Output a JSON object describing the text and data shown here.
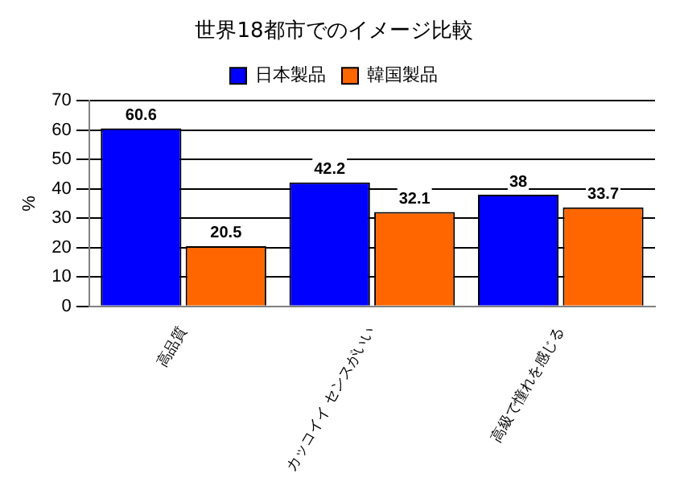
{
  "chart_data": {
    "type": "bar",
    "title": "世界18都市でのイメージ比較",
    "ylabel": "%",
    "categories": [
      "高品質",
      "カッコイイ センスがいい",
      "高級で憧れを感じる"
    ],
    "series": [
      {
        "name": "日本製品",
        "color": "#0000ff",
        "values": [
          60.6,
          42.2,
          38
        ]
      },
      {
        "name": "韓国製品",
        "color": "#ff6600",
        "values": [
          20.5,
          32.1,
          33.7
        ]
      }
    ],
    "ylim": [
      0,
      70
    ],
    "yticks": [
      0,
      10,
      20,
      30,
      40,
      50,
      60,
      70
    ],
    "grid": "y",
    "legend": "top",
    "data_labels": true
  }
}
